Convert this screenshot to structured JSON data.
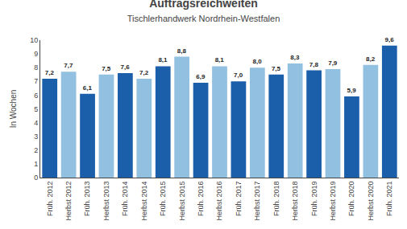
{
  "chart_data": {
    "type": "bar",
    "title": "Auftragsreichweiten",
    "subtitle": "Tischlerhandwerk Nordrhein-Westfalen",
    "ylabel": "In Wochen",
    "categories": [
      "Früh. 2012",
      "Herbst 2012",
      "Früh. 2013",
      "Herbst 2013",
      "Früh. 2014",
      "Herbst 2014",
      "Früh. 2015",
      "Herbst 2015",
      "Früh. 2016",
      "Herbst 2016",
      "Früh. 2017",
      "Herbst 2017",
      "Früh. 2018",
      "Herbst 2018",
      "Früh. 2019",
      "Herbst 2019",
      "Früh. 2020",
      "Herbst 2020",
      "Früh. 2021"
    ],
    "values": [
      7.2,
      7.7,
      6.1,
      7.5,
      7.6,
      7.2,
      8.1,
      8.8,
      6.9,
      8.1,
      7.0,
      8.0,
      7.5,
      8.3,
      7.8,
      7.9,
      5.9,
      8.2,
      9.6
    ],
    "value_labels": [
      "7,2",
      "7,7",
      "6,1",
      "7,5",
      "7,6",
      "7,2",
      "8,1",
      "8,8",
      "6,9",
      "8,1",
      "7,0",
      "8,0",
      "7,5",
      "8,3",
      "7,8",
      "7,9",
      "5,9",
      "8,2",
      "9,6"
    ],
    "colors": [
      "#1b5faa",
      "#92c0e0",
      "#1b5faa",
      "#92c0e0",
      "#1b5faa",
      "#92c0e0",
      "#1b5faa",
      "#92c0e0",
      "#1b5faa",
      "#92c0e0",
      "#1b5faa",
      "#92c0e0",
      "#1b5faa",
      "#92c0e0",
      "#1b5faa",
      "#92c0e0",
      "#1b5faa",
      "#92c0e0",
      "#1b5faa"
    ],
    "data_labels": true,
    "ylim": [
      0,
      10
    ],
    "yticks": [
      0,
      1,
      2,
      3,
      4,
      5,
      6,
      7,
      8,
      9,
      10
    ],
    "grid": false
  }
}
